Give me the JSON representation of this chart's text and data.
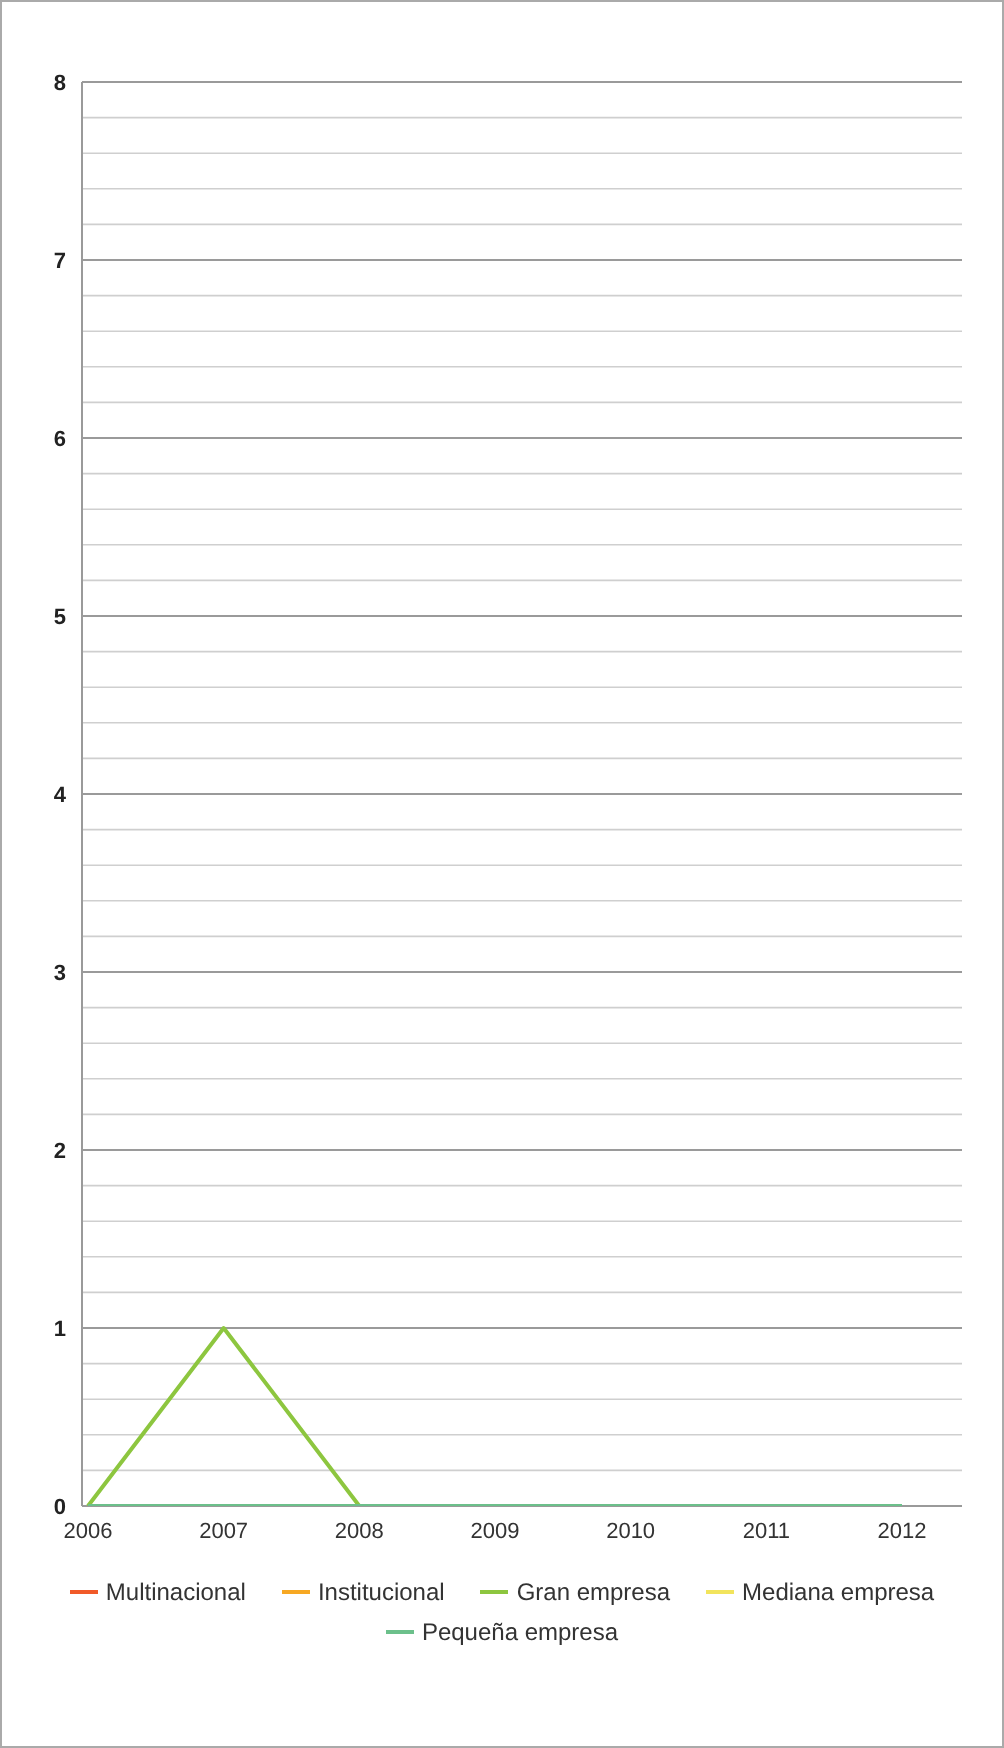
{
  "chart_data": {
    "type": "line",
    "categories": [
      "2006",
      "2007",
      "2008",
      "2009",
      "2010",
      "2011",
      "2012"
    ],
    "series": [
      {
        "name": "Multinacional",
        "color": "#f15a29",
        "values": [
          null,
          null,
          null,
          null,
          null,
          null,
          null
        ]
      },
      {
        "name": "Institucional",
        "color": "#f7a823",
        "values": [
          null,
          null,
          null,
          null,
          null,
          null,
          null
        ]
      },
      {
        "name": "Gran empresa",
        "color": "#8dc63f",
        "values": [
          0,
          1,
          0,
          null,
          null,
          null,
          null
        ]
      },
      {
        "name": "Mediana empresa",
        "color": "#f2e45c",
        "values": [
          null,
          null,
          null,
          null,
          null,
          null,
          null
        ]
      },
      {
        "name": "Pequeña empresa",
        "color": "#6cc08b",
        "values": [
          0,
          0,
          0,
          0,
          0,
          0,
          0
        ]
      }
    ],
    "ylim": [
      0,
      8
    ],
    "yticks": [
      0,
      1,
      2,
      3,
      4,
      5,
      6,
      7,
      8
    ],
    "grid": "y",
    "legend": "bottom",
    "marker": "none",
    "line_style": "solid"
  }
}
